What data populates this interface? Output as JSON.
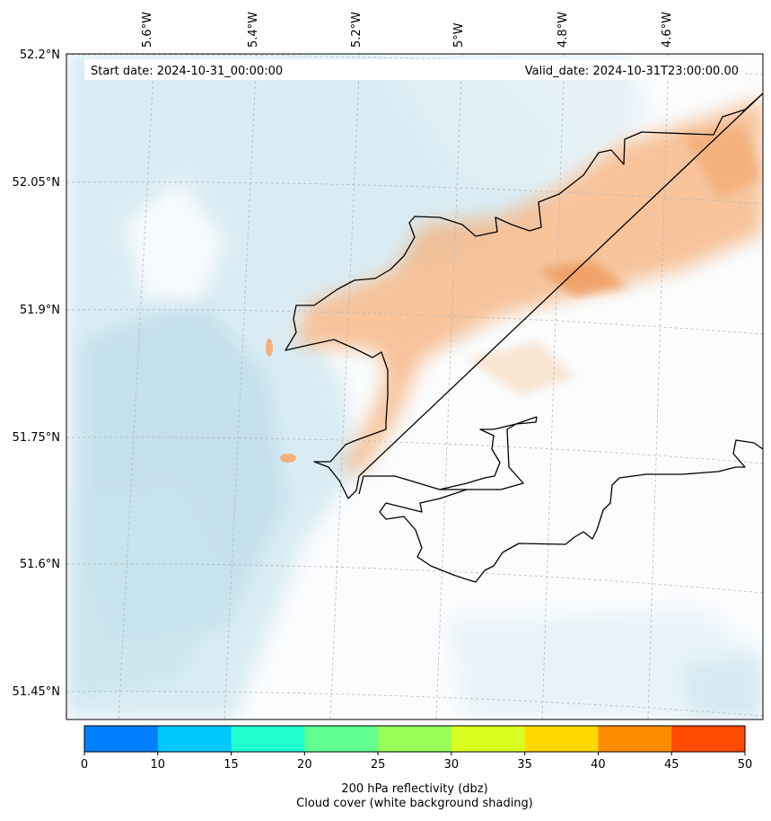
{
  "header": {
    "start_date": "Start date: 2024-10-31_00:00:00",
    "valid_date": "Valid_date: 2024-10-31T23:00:00.00"
  },
  "map": {
    "lon_labels": [
      "5.6°W",
      "5.4°W",
      "5.2°W",
      "5°W",
      "4.8°W",
      "4.6°W"
    ],
    "lat_labels": [
      "52.2°N",
      "52.05°N",
      "51.9°N",
      "51.75°N",
      "51.6°N",
      "51.45°N"
    ],
    "land_color": "#ffffff",
    "coastline_color": "#000000",
    "cloud_cover_color": "#d5eaf2",
    "reflectivity_shading_color": "#f5b07a"
  },
  "colorbar": {
    "ticks": [
      "0",
      "10",
      "15",
      "20",
      "25",
      "30",
      "35",
      "40",
      "45",
      "50"
    ],
    "colors": [
      "#0080ff",
      "#00c8ff",
      "#20ffd0",
      "#60ff90",
      "#98ff58",
      "#d8ff20",
      "#ffd800",
      "#ff8c00",
      "#ff4a00"
    ],
    "label_line1": "200 hPa reflectivity (dbz)",
    "label_line2": "Cloud cover (white background shading)"
  }
}
